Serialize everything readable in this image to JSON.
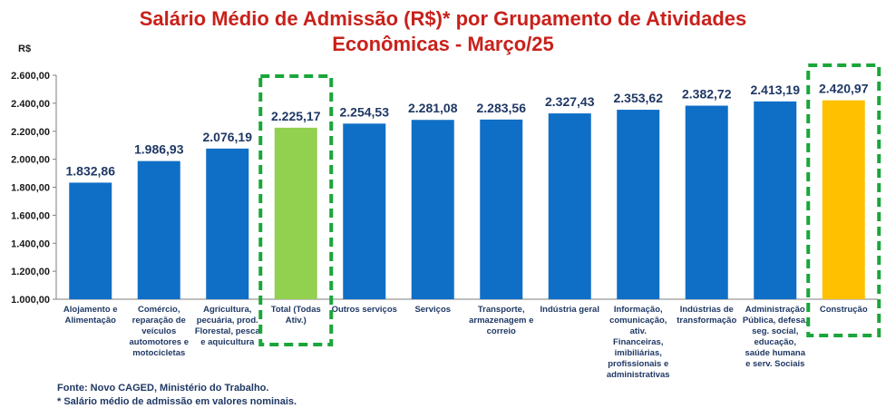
{
  "chart_data": {
    "type": "bar",
    "title_line1": "Salário Médio de Admissão (R$)* por Grupamento de Atividades",
    "title_line2": "Econômicas - Março/25",
    "ylabel": "R$",
    "ylim": [
      1000,
      2600
    ],
    "yticks": [
      "1.000,00",
      "1.200,00",
      "1.400,00",
      "1.600,00",
      "1.800,00",
      "2.000,00",
      "2.200,00",
      "2.400,00",
      "2.600,00"
    ],
    "ytick_values": [
      1000,
      1200,
      1400,
      1600,
      1800,
      2000,
      2200,
      2400,
      2600
    ],
    "grid": false,
    "categories": [
      "Alojamento e Alimentação",
      "Comércio, reparação de veículos automotores e motocicletas",
      "Agricultura, pecuária, prod. Florestal, pesca e aquicultura",
      "Total (Todas Ativ.)",
      "Outros serviços",
      "Serviços",
      "Transporte, armazenagem e correio",
      "Indústria geral",
      "Informação, comunicação, ativ. Financeiras, imibiliárias, profissionais e administrativas",
      "Indústrias de transformação",
      "Administração Pública, defesa, seg. social, educação, saúde humana e serv. Sociais",
      "Construção"
    ],
    "category_lines": [
      [
        "Alojamento e",
        "Alimentação"
      ],
      [
        "Comércio,",
        "reparação de",
        "veículos",
        "automotores e",
        "motocicletas"
      ],
      [
        "Agricultura,",
        "pecuária, prod.",
        "Florestal, pesca",
        "e aquicultura"
      ],
      [
        "Total (Todas",
        "Ativ.)"
      ],
      [
        "Outros serviços"
      ],
      [
        "Serviços"
      ],
      [
        "Transporte,",
        "armazenagem e",
        "correio"
      ],
      [
        "Indústria geral"
      ],
      [
        "Informação,",
        "comunicação,",
        "ativ.",
        "Financeiras,",
        "imibiliárias,",
        "profissionais e",
        "administrativas"
      ],
      [
        "Indústrias de",
        "transformação"
      ],
      [
        "Administração",
        "Pública, defesa,",
        "seg. social,",
        "educação,",
        "saúde humana",
        "e serv. Sociais"
      ],
      [
        "Construção"
      ]
    ],
    "values": [
      1832.86,
      1986.93,
      2076.19,
      2225.17,
      2254.53,
      2281.08,
      2283.56,
      2327.43,
      2353.62,
      2382.72,
      2413.19,
      2420.97
    ],
    "value_labels": [
      "1.832,86",
      "1.986,93",
      "2.076,19",
      "2.225,17",
      "2.254,53",
      "2.281,08",
      "2.283,56",
      "2.327,43",
      "2.353,62",
      "2.382,72",
      "2.413,19",
      "2.420,97"
    ],
    "bar_colors": [
      "#0f6fc6",
      "#0f6fc6",
      "#0f6fc6",
      "#92d050",
      "#0f6fc6",
      "#0f6fc6",
      "#0f6fc6",
      "#0f6fc6",
      "#0f6fc6",
      "#0f6fc6",
      "#0f6fc6",
      "#ffc000"
    ],
    "highlighted_indices": [
      3,
      11
    ],
    "highlight_color": "#1aa63a"
  },
  "footnotes": {
    "source": "Fonte: Novo CAGED, Ministério do Trabalho.",
    "note": "* Salário médio de admissão em valores nominais."
  }
}
